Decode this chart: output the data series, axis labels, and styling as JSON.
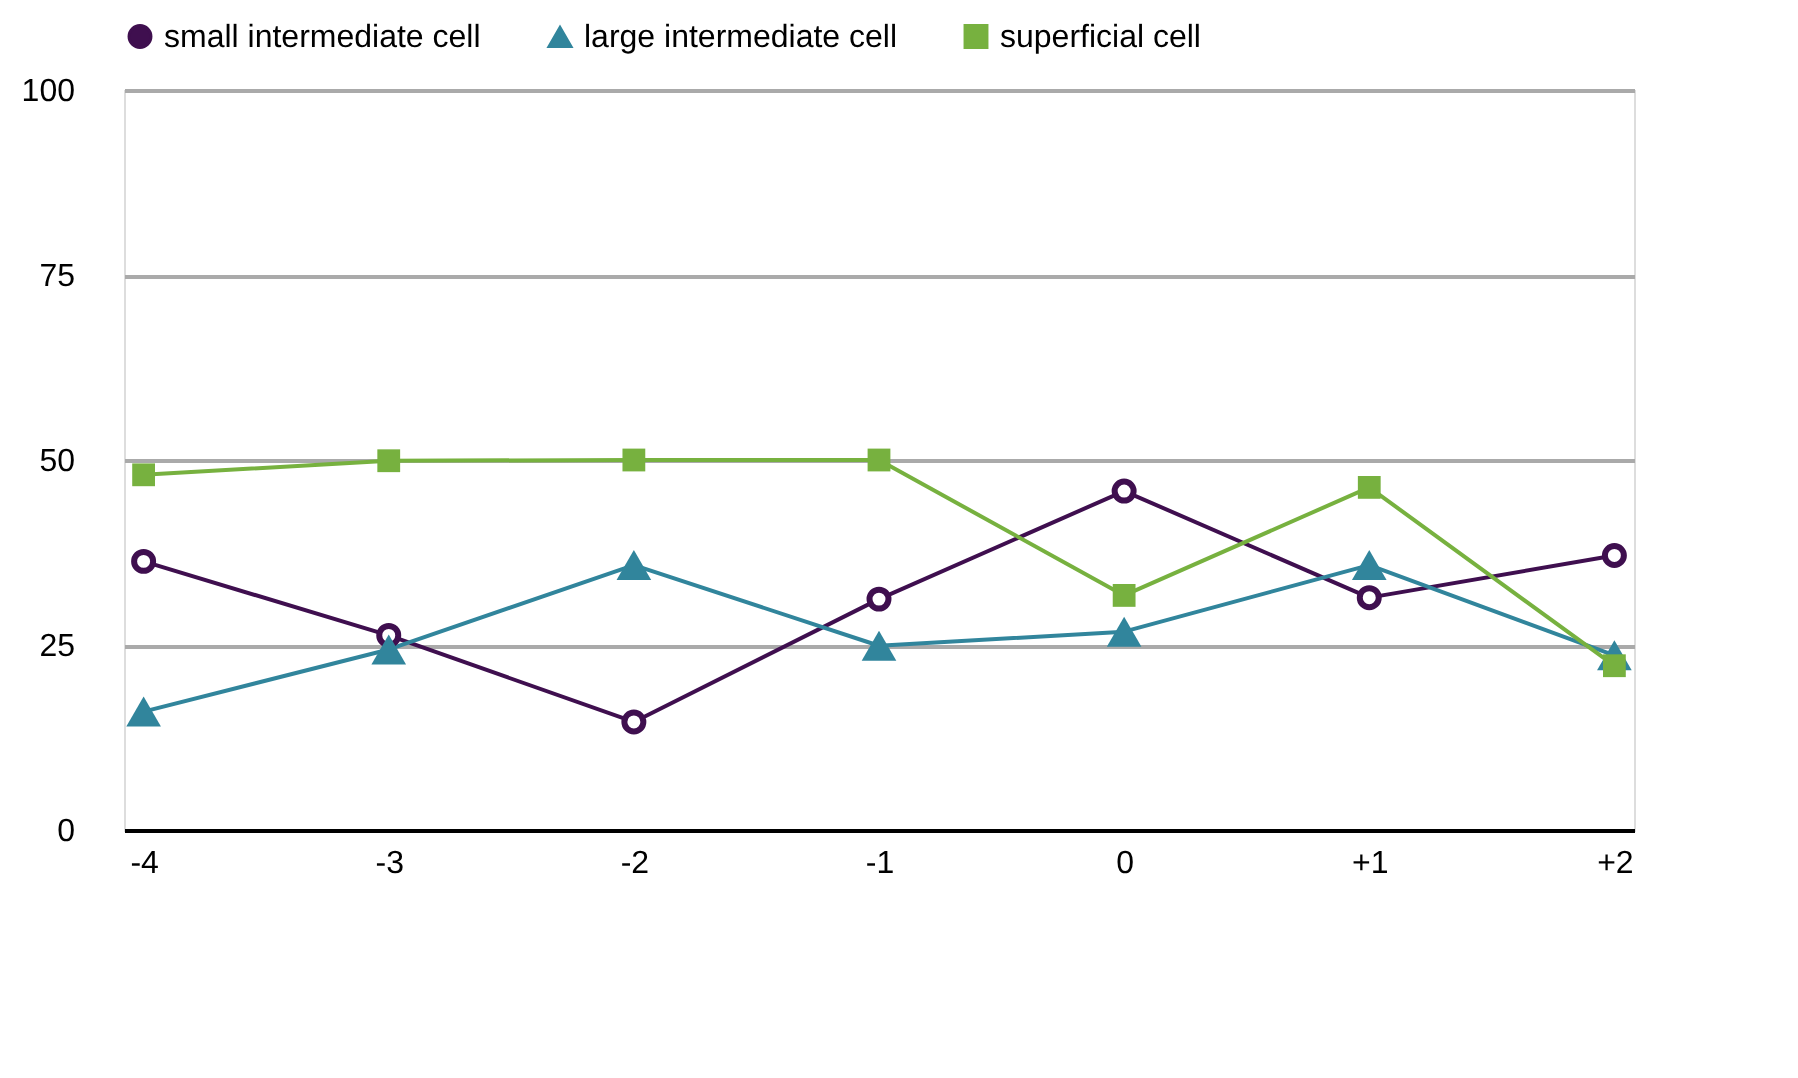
{
  "chart_data": {
    "type": "line",
    "categories": [
      "-4",
      "-3",
      "-2",
      "-1",
      "0",
      "+1",
      "+2"
    ],
    "series": [
      {
        "name": "small intermediate cell",
        "color": "#3f0f4f",
        "marker": "circle",
        "values": [
          36.3,
          26.3,
          14.6,
          31.2,
          45.8,
          31.4,
          37.1
        ]
      },
      {
        "name": "large intermediate cell",
        "color": "#31859c",
        "marker": "triangle",
        "values": [
          16,
          24.4,
          35.8,
          24.9,
          26.8,
          35.8,
          23.6
        ]
      },
      {
        "name": "superficial cell",
        "color": "#77b13f",
        "marker": "square",
        "values": [
          48,
          49.9,
          50,
          50,
          31.7,
          46.3,
          22.2
        ]
      }
    ],
    "ylim": [
      0,
      100
    ],
    "yticks": [
      0,
      25,
      50,
      75,
      100
    ],
    "grid": "y",
    "legend": "top"
  }
}
